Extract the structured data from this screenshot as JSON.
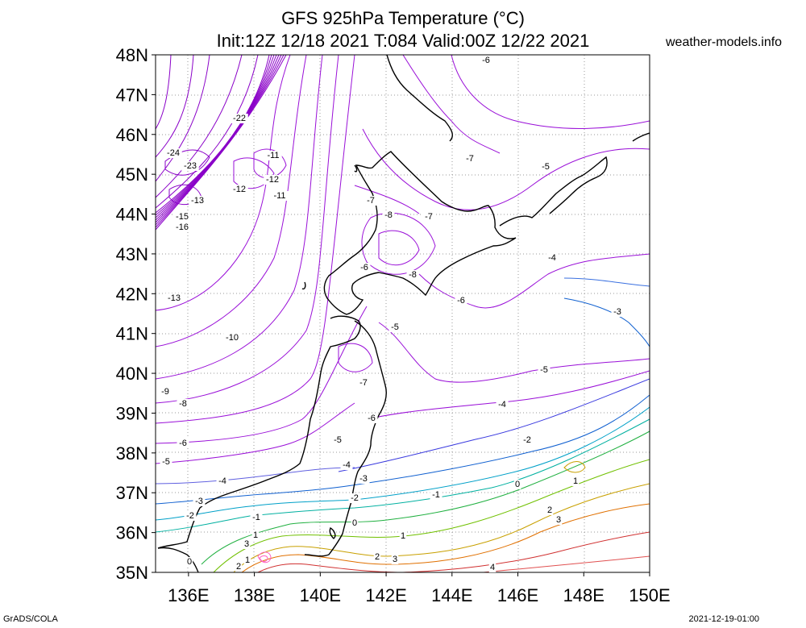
{
  "header": {
    "title_line1": "GFS 925hPa Temperature (°C)",
    "title_line2": "Init:12Z 12/18 2021 T:084 Valid:00Z 12/22 2021",
    "site": "weather-models.info"
  },
  "footer": {
    "left": "GrADS/COLA",
    "right": "2021-12-19-01:00"
  },
  "map": {
    "lat_labels": [
      "48N",
      "47N",
      "46N",
      "45N",
      "44N",
      "43N",
      "42N",
      "41N",
      "40N",
      "39N",
      "38N",
      "37N",
      "36N",
      "35N"
    ],
    "lon_labels": [
      "136E",
      "138E",
      "140E",
      "142E",
      "144E",
      "146E",
      "148E",
      "150E"
    ],
    "contour_labels": [
      {
        "text": "-6",
        "color": "#8a00c8"
      },
      {
        "text": "-22",
        "color": "#8a00c8"
      },
      {
        "text": "-24",
        "color": "#8a00c8"
      },
      {
        "text": "-23",
        "color": "#8a00c8"
      },
      {
        "text": "-11",
        "color": "#8a00c8"
      },
      {
        "text": "-12",
        "color": "#8a00c8"
      },
      {
        "text": "-12",
        "color": "#8a00c8"
      },
      {
        "text": "-11",
        "color": "#8a00c8"
      },
      {
        "text": "-13",
        "color": "#8a00c8"
      },
      {
        "text": "-15",
        "color": "#8a00c8"
      },
      {
        "text": "-16",
        "color": "#8a00c8"
      },
      {
        "text": "-7",
        "color": "#8a00c8"
      },
      {
        "text": "-5",
        "color": "#8a00c8"
      },
      {
        "text": "-7",
        "color": "#8a00c8"
      },
      {
        "text": "-8",
        "color": "#8a00c8"
      },
      {
        "text": "-7",
        "color": "#8a00c8"
      },
      {
        "text": "-6",
        "color": "#8a00c8"
      },
      {
        "text": "-8",
        "color": "#8a00c8"
      },
      {
        "text": "-4",
        "color": "#5050e0"
      },
      {
        "text": "-13",
        "color": "#8a00c8"
      },
      {
        "text": "-6",
        "color": "#8a00c8"
      },
      {
        "text": "-3",
        "color": "#1060d0"
      },
      {
        "text": "-5",
        "color": "#8a00c8"
      },
      {
        "text": "-10",
        "color": "#8a00c8"
      },
      {
        "text": "-5",
        "color": "#5050e0"
      },
      {
        "text": "-7",
        "color": "#8a00c8"
      },
      {
        "text": "-9",
        "color": "#8a00c8"
      },
      {
        "text": "-8",
        "color": "#8a00c8"
      },
      {
        "text": "-4",
        "color": "#3a3adf"
      },
      {
        "text": "-6",
        "color": "#8a00c8"
      },
      {
        "text": "-6",
        "color": "#8a00c8"
      },
      {
        "text": "-5",
        "color": "#8a00c8"
      },
      {
        "text": "-2",
        "color": "#00a0c8"
      },
      {
        "text": "-5",
        "color": "#8a00c8"
      },
      {
        "text": "-4",
        "color": "#8a00c8"
      },
      {
        "text": "-3",
        "color": "#1060d0"
      },
      {
        "text": "-4",
        "color": "#5050e0"
      },
      {
        "text": "-3",
        "color": "#1060d0"
      },
      {
        "text": "-2",
        "color": "#00a0c8"
      },
      {
        "text": "-1",
        "color": "#00b0a0"
      },
      {
        "text": "0",
        "color": "#20b040"
      },
      {
        "text": "1",
        "color": "#70c000"
      },
      {
        "text": "-2",
        "color": "#00a0c8"
      },
      {
        "text": "-1",
        "color": "#00b0a0"
      },
      {
        "text": "0",
        "color": "#20b040"
      },
      {
        "text": "1",
        "color": "#70c000"
      },
      {
        "text": "2",
        "color": "#c8a000"
      },
      {
        "text": "3",
        "color": "#e07000"
      },
      {
        "text": "1",
        "color": "#70c000"
      },
      {
        "text": "2",
        "color": "#c8a000"
      },
      {
        "text": "3",
        "color": "#e07000"
      },
      {
        "text": "4",
        "color": "#d03030"
      },
      {
        "text": "0",
        "color": "#20b040"
      },
      {
        "text": "2",
        "color": "#c8a000"
      },
      {
        "text": "3",
        "color": "#e07000"
      },
      {
        "text": "1",
        "color": "#70c000"
      }
    ]
  }
}
